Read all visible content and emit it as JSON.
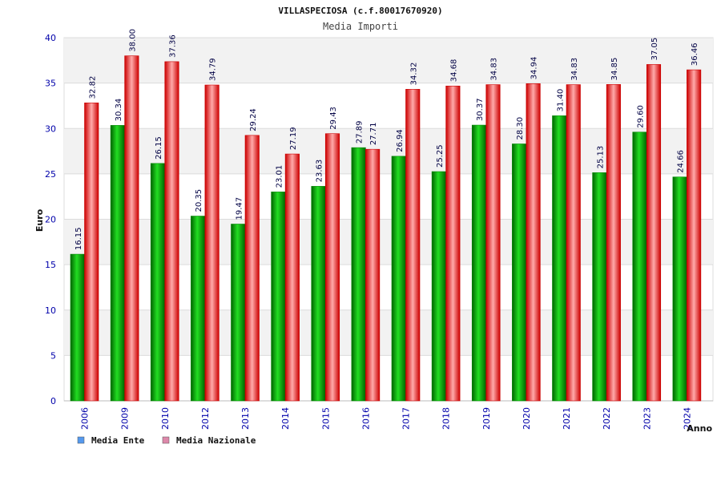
{
  "chart_data": {
    "type": "bar",
    "title": "VILLASPECIOSA (c.f.80017670920)",
    "subtitle": "Media Importi",
    "xlabel": "Anno",
    "ylabel": "Euro",
    "ylim": [
      0,
      40
    ],
    "yticks": [
      "0",
      "5",
      "10",
      "15",
      "20",
      "25",
      "30",
      "35",
      "40"
    ],
    "categories": [
      "2006",
      "2009",
      "2010",
      "2012",
      "2013",
      "2014",
      "2015",
      "2016",
      "2017",
      "2018",
      "2019",
      "2020",
      "2021",
      "2022",
      "2023",
      "2024"
    ],
    "series": [
      {
        "name": "Media Ente",
        "color": "#00b400",
        "legend_color": "#5599ee",
        "values": [
          16.15,
          30.34,
          26.15,
          20.35,
          19.47,
          23.01,
          23.63,
          27.89,
          26.94,
          25.25,
          30.37,
          28.3,
          31.4,
          25.13,
          29.6,
          24.66
        ],
        "labels": [
          "16.15",
          "30.34",
          "26.15",
          "20.35",
          "19.47",
          "23.01",
          "23.63",
          "27.89",
          "26.94",
          "25.25",
          "30.37",
          "28.30",
          "31.40",
          "25.13",
          "29.60",
          "24.66"
        ]
      },
      {
        "name": "Media Nazionale",
        "color": "#e60000",
        "legend_color": "#dd88aa",
        "values": [
          32.82,
          38.0,
          37.36,
          34.79,
          29.24,
          27.19,
          29.43,
          27.71,
          34.32,
          34.68,
          34.83,
          34.94,
          34.83,
          34.85,
          37.05,
          36.46
        ],
        "labels": [
          "32.82",
          "38.00",
          "37.36",
          "34.79",
          "29.24",
          "27.19",
          "29.43",
          "27.71",
          "34.32",
          "34.68",
          "34.83",
          "34.94",
          "34.83",
          "34.85",
          "37.05",
          "36.46"
        ]
      }
    ],
    "grid": true,
    "legend": "bottom-left"
  }
}
